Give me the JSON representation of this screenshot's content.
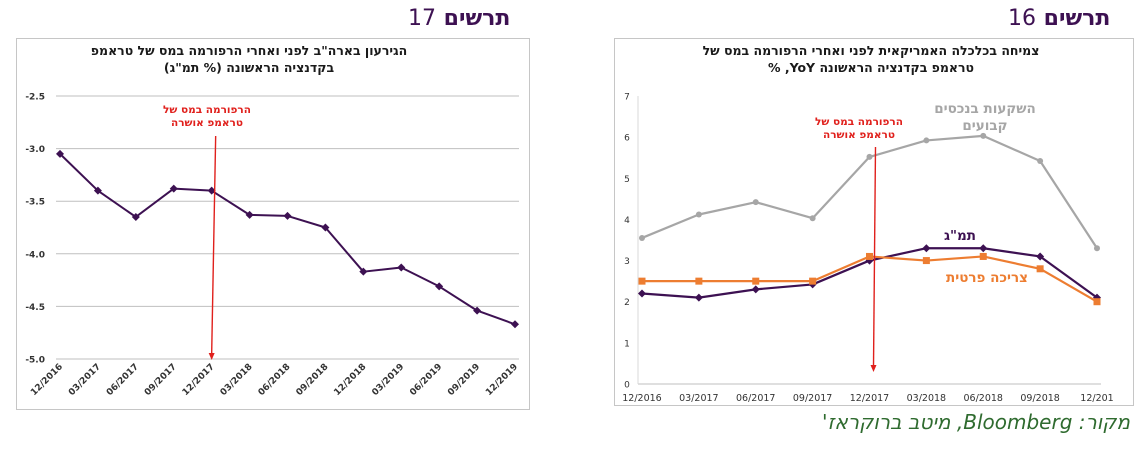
{
  "fig17": {
    "label_word": "תרשים",
    "label_num": "17"
  },
  "fig16": {
    "label_word": "תרשים",
    "label_num": "16"
  },
  "source": "מקור: Bloomberg, מיטב ברוקראז'",
  "chart_data": [
    {
      "id": "fig17",
      "type": "line",
      "title_lines": [
        "הגירעון בארה\"ב לפני ואחרי הרפורמה במס של טראמפ",
        "בקדנציה הראשונה (% תמ\"ג)"
      ],
      "categories": [
        "12/2016",
        "03/2017",
        "06/2017",
        "09/2017",
        "12/2017",
        "03/2018",
        "06/2018",
        "09/2018",
        "12/2018",
        "03/2019",
        "06/2019",
        "09/2019",
        "12/2019"
      ],
      "series": [
        {
          "color": "#3d1152",
          "values": [
            -3.05,
            -3.4,
            -3.65,
            -3.38,
            -3.4,
            -3.63,
            -3.64,
            -3.75,
            -4.17,
            -4.13,
            -4.31,
            -4.54,
            -4.67
          ]
        }
      ],
      "ylim": [
        -5.0,
        -2.5
      ],
      "yticks": [
        "-2.5",
        "-3.0",
        "-3.5",
        "-4.0",
        "-4.5",
        "-5.0"
      ],
      "grid": true,
      "annotation": {
        "lines": [
          "הרפורמה במס של",
          "טראמפ אושרה"
        ],
        "color": "#e0201c",
        "x_category": "12/2017"
      }
    },
    {
      "id": "fig16",
      "type": "line",
      "title_lines": [
        "צמיחה בכלכלה האמריקאית לפני ואחרי הרפורמה במס של",
        "טראמפ בקדנציה הראשונה YoY, %"
      ],
      "categories": [
        "12/2016",
        "03/2017",
        "06/2017",
        "09/2017",
        "12/2017",
        "03/2018",
        "06/2018",
        "09/2018",
        "12/201"
      ],
      "series": [
        {
          "name": "השקעות בנכסים קבועים",
          "label_lines": [
            "השקעות בנכסים",
            "קבועים"
          ],
          "color": "#a6a6a6",
          "marker": "circle",
          "values": [
            3.55,
            4.12,
            4.42,
            4.03,
            5.52,
            5.92,
            6.03,
            5.42,
            3.3
          ]
        },
        {
          "name": "תמ\"ג",
          "label_lines": [
            "תמ\"ג"
          ],
          "color": "#3d1152",
          "marker": "diamond",
          "values": [
            2.2,
            2.1,
            2.3,
            2.42,
            3.0,
            3.3,
            3.3,
            3.1,
            2.1
          ]
        },
        {
          "name": "צריכה פרטית",
          "label_lines": [
            "צריכה פרטית"
          ],
          "color": "#ed7d31",
          "marker": "square",
          "values": [
            2.5,
            2.5,
            2.5,
            2.5,
            3.1,
            3.0,
            3.1,
            2.8,
            2.0
          ]
        }
      ],
      "ylim": [
        0,
        7
      ],
      "yticks": [
        "7",
        "6",
        "5",
        "4",
        "3",
        "2",
        "1",
        "0"
      ],
      "grid": false,
      "annotation": {
        "lines": [
          "הרפורמה במס של",
          "טראמפ אושרה"
        ],
        "color": "#e0201c",
        "x_category": "12/2017"
      }
    }
  ]
}
